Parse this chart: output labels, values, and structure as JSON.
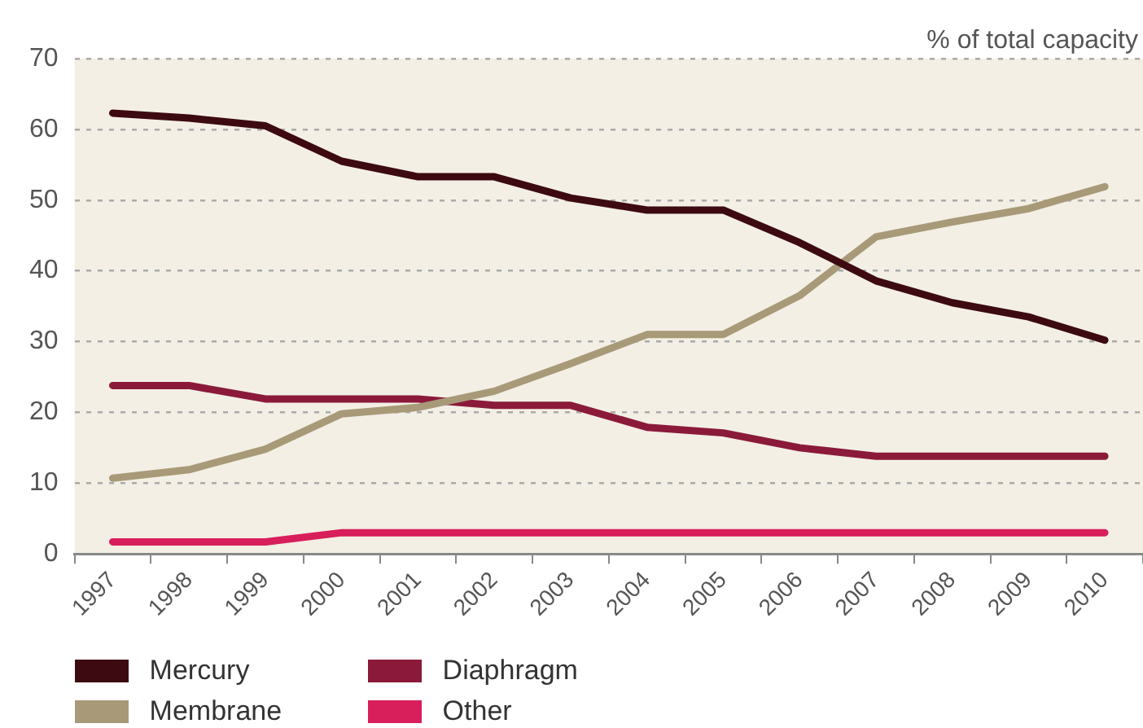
{
  "chart_data": {
    "type": "line",
    "ylabel": "% of total capacity",
    "categories": [
      "1997",
      "1998",
      "1999",
      "2000",
      "2001",
      "2002",
      "2003",
      "2004",
      "2005",
      "2006",
      "2007",
      "2008",
      "2009",
      "2010"
    ],
    "series": [
      {
        "name": "Mercury",
        "color": "#3d0a12",
        "values": [
          62.3,
          61.6,
          60.5,
          55.5,
          53.3,
          53.3,
          50.3,
          48.6,
          48.6,
          44,
          38.6,
          35.5,
          33.5,
          30.2
        ]
      },
      {
        "name": "Membrane",
        "color": "#a89a78",
        "values": [
          10.7,
          11.9,
          14.8,
          19.8,
          20.7,
          23,
          26.9,
          31,
          31,
          36.5,
          44.8,
          46.9,
          48.8,
          51.9
        ]
      },
      {
        "name": "Diaphragm",
        "color": "#8b1a3a",
        "values": [
          23.8,
          23.8,
          21.9,
          21.9,
          21.9,
          21,
          21,
          17.9,
          17.1,
          15,
          13.8,
          13.8,
          13.8,
          13.8
        ]
      },
      {
        "name": "Other",
        "color": "#d81e5b",
        "values": [
          1.7,
          1.7,
          1.7,
          3,
          3,
          3,
          3,
          3,
          3,
          3,
          3,
          3,
          3,
          3
        ]
      }
    ],
    "ylim": [
      0,
      70
    ],
    "yticks": [
      0,
      10,
      20,
      30,
      40,
      50,
      60,
      70
    ],
    "grid": "y",
    "legend": "bottom left",
    "marker": "none",
    "line_style": "solid"
  }
}
